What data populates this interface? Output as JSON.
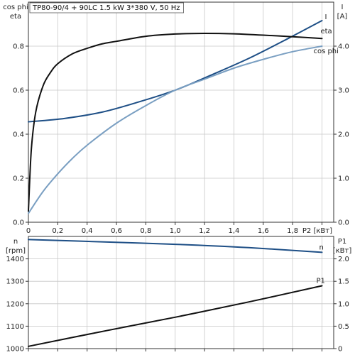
{
  "chart_data": [
    {
      "type": "line",
      "title": "TP80-90/4 + 90LC  1.5 kW   3*380 V, 50 Hz",
      "x_axis": {
        "label": "P2 [кВт]",
        "range": [
          0,
          2.08
        ],
        "ticks": [
          "0",
          "0,2",
          "0,4",
          "0,6",
          "0,8",
          "1,0",
          "1,2",
          "1,4",
          "1,6",
          "1,8"
        ]
      },
      "y_left": {
        "label_line1": "cos phi",
        "label_line2": "eta",
        "range": [
          0,
          1.0
        ],
        "ticks": [
          "0.0",
          "0.2",
          "0.4",
          "0.6",
          "0.8"
        ]
      },
      "y_right": {
        "label_line1": "I",
        "label_line2": "[A]",
        "range": [
          0,
          5.0
        ],
        "ticks": [
          "0.0",
          "1.0",
          "2.0",
          "3.0",
          "4.0"
        ]
      },
      "grid": true,
      "series": [
        {
          "name": "I",
          "axis": "right",
          "color": "#1e4f86",
          "x": [
            0,
            0.25,
            0.5,
            0.75,
            1.0,
            1.25,
            1.5,
            1.75,
            2.0
          ],
          "y": [
            2.28,
            2.36,
            2.5,
            2.73,
            3.0,
            3.35,
            3.72,
            4.14,
            4.58
          ]
        },
        {
          "name": "eta",
          "axis": "left",
          "color": "#111111",
          "x": [
            0,
            0.02,
            0.05,
            0.1,
            0.15,
            0.2,
            0.3,
            0.4,
            0.5,
            0.6,
            0.8,
            1.0,
            1.2,
            1.4,
            1.6,
            1.8,
            2.0
          ],
          "y": [
            0.05,
            0.33,
            0.5,
            0.62,
            0.68,
            0.72,
            0.765,
            0.79,
            0.81,
            0.822,
            0.845,
            0.855,
            0.858,
            0.856,
            0.85,
            0.843,
            0.835
          ]
        },
        {
          "name": "cos phi",
          "axis": "left",
          "color": "#7a9fc2",
          "x": [
            0,
            0.1,
            0.2,
            0.3,
            0.4,
            0.6,
            0.8,
            1.0,
            1.2,
            1.4,
            1.6,
            1.8,
            2.0
          ],
          "y": [
            0.04,
            0.14,
            0.22,
            0.29,
            0.35,
            0.45,
            0.53,
            0.6,
            0.65,
            0.7,
            0.74,
            0.775,
            0.8
          ]
        }
      ]
    },
    {
      "type": "line",
      "x_axis": {
        "range": [
          0,
          2.08
        ]
      },
      "y_left": {
        "label_line1": "n",
        "label_line2": "[rpm]",
        "range": [
          1000,
          1500
        ],
        "ticks": [
          "1000",
          "1100",
          "1200",
          "1300",
          "1400"
        ]
      },
      "y_right": {
        "label_line1": "P1",
        "label_line2": "[кВт]",
        "range": [
          0,
          2.5
        ],
        "ticks": [
          "0",
          "0.5",
          "1.0",
          "1.5",
          "2.0"
        ]
      },
      "grid": true,
      "series": [
        {
          "name": "n",
          "axis": "left",
          "color": "#1e4f86",
          "x": [
            0,
            0.5,
            1.0,
            1.5,
            2.0
          ],
          "y": [
            1486,
            1476,
            1465,
            1450,
            1429
          ]
        },
        {
          "name": "P1",
          "axis": "right",
          "color": "#111111",
          "x": [
            0,
            0.5,
            1.0,
            1.5,
            2.0
          ],
          "y": [
            0.05,
            0.38,
            0.7,
            1.04,
            1.4
          ]
        }
      ]
    }
  ]
}
